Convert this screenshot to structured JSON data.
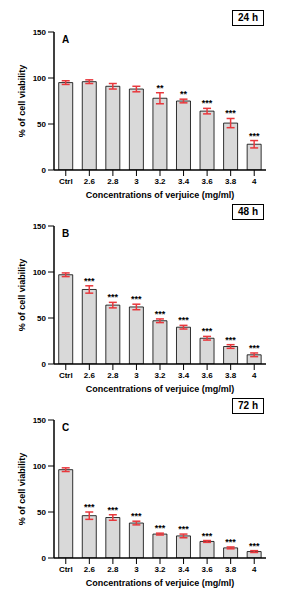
{
  "chart_data": [
    {
      "type": "bar",
      "title": "24 h",
      "panel_label": "A",
      "x_label": "Concentrations of verjuice (mg/ml)",
      "y_label": "% of cell viability",
      "categories": [
        "Ctrl",
        "2.6",
        "2.8",
        "3",
        "3.2",
        "3.4",
        "3.6",
        "3.8",
        "4"
      ],
      "values": [
        95,
        96,
        91,
        88,
        78,
        75,
        64,
        51,
        28
      ],
      "errors": [
        2,
        2,
        3,
        3,
        6,
        2,
        3,
        5,
        4
      ],
      "significance": [
        null,
        null,
        null,
        null,
        "**",
        "**",
        "***",
        "***",
        "***"
      ],
      "color": "#d9d9d9",
      "ylim": [
        0,
        150
      ],
      "yticks": [
        0,
        50,
        100,
        150
      ],
      "grid": false
    },
    {
      "type": "bar",
      "title": "48 h",
      "panel_label": "B",
      "x_label": "Concentrations of verjuice (mg/ml)",
      "y_label": "% of cell viability",
      "categories": [
        "Ctrl",
        "2.6",
        "2.8",
        "3",
        "3.2",
        "3.4",
        "3.6",
        "3.8",
        "4"
      ],
      "values": [
        97,
        81,
        64,
        62,
        47,
        40,
        28,
        19,
        10
      ],
      "errors": [
        2,
        4,
        3,
        3,
        2,
        2,
        2,
        2,
        2
      ],
      "significance": [
        null,
        "***",
        "***",
        "***",
        "***",
        "***",
        "***",
        "***",
        "***"
      ],
      "color": "#d9d9d9",
      "ylim": [
        0,
        150
      ],
      "yticks": [
        0,
        50,
        100,
        150
      ],
      "grid": false
    },
    {
      "type": "bar",
      "title": "72 h",
      "panel_label": "C",
      "x_label": "Concentrations of verjuice (mg/ml)",
      "y_label": "% of cell viability",
      "categories": [
        "Ctrl",
        "2.6",
        "2.8",
        "3",
        "3.2",
        "3.4",
        "3.6",
        "3.8",
        "4"
      ],
      "values": [
        96,
        46,
        44,
        38,
        26,
        24,
        18,
        11,
        7
      ],
      "errors": [
        2,
        4,
        3,
        2,
        1,
        2,
        1,
        1,
        1
      ],
      "significance": [
        null,
        "***",
        "***",
        "***",
        "***",
        "***",
        "***",
        "***",
        "***"
      ],
      "color": "#d9d9d9",
      "ylim": [
        0,
        150
      ],
      "yticks": [
        0,
        50,
        100,
        150
      ],
      "grid": false
    }
  ]
}
